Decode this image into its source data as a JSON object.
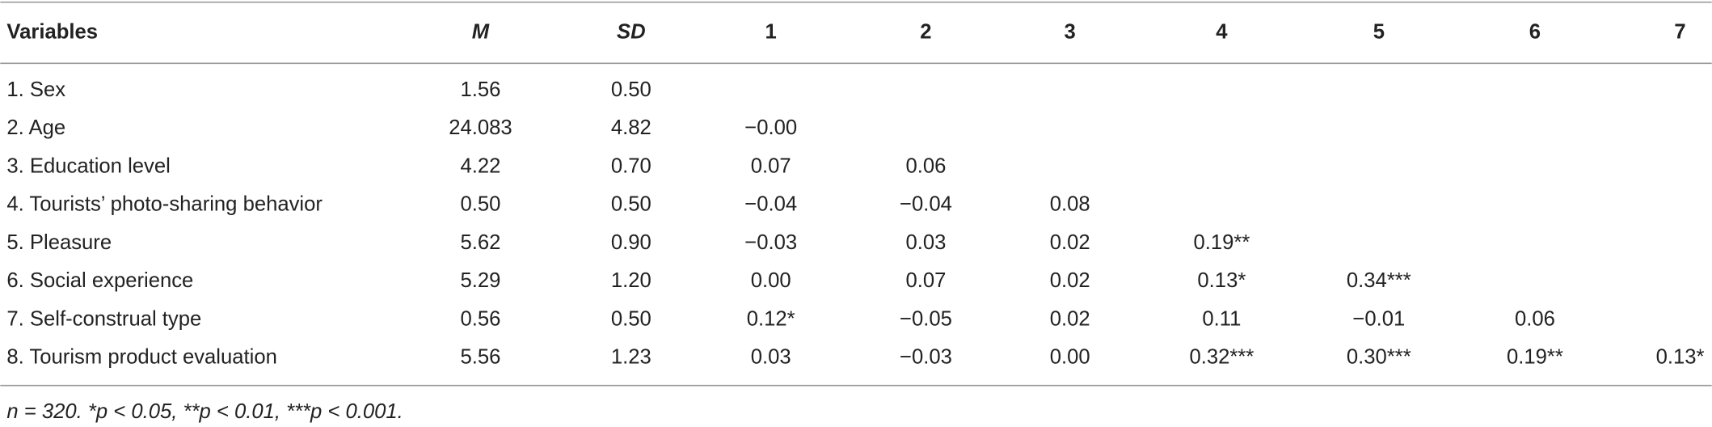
{
  "table": {
    "header": [
      "Variables",
      "M",
      "SD",
      "1",
      "2",
      "3",
      "4",
      "5",
      "6",
      "7"
    ],
    "rows": [
      [
        "1. Sex",
        "1.56",
        "0.50"
      ],
      [
        "2. Age",
        "24.083",
        "4.82",
        "−0.00"
      ],
      [
        "3. Education level",
        "4.22",
        "0.70",
        "0.07",
        "0.06"
      ],
      [
        "4. Tourists’ photo-sharing behavior",
        "0.50",
        "0.50",
        "−0.04",
        "−0.04",
        "0.08"
      ],
      [
        "5. Pleasure",
        "5.62",
        "0.90",
        "−0.03",
        "0.03",
        "0.02",
        "0.19**"
      ],
      [
        "6. Social experience",
        "5.29",
        "1.20",
        "0.00",
        "0.07",
        "0.02",
        "0.13*",
        "0.34***"
      ],
      [
        "7. Self-construal type",
        "0.56",
        "0.50",
        "0.12*",
        "−0.05",
        "0.02",
        "0.11",
        "−0.01",
        "0.06"
      ],
      [
        "8. Tourism product evaluation",
        "5.56",
        "1.23",
        "0.03",
        "−0.03",
        "0.00",
        "0.32***",
        "0.30***",
        "0.19**",
        "0.13*"
      ]
    ],
    "note": "n = 320. *p < 0.05, **p < 0.01, ***p < 0.001."
  }
}
